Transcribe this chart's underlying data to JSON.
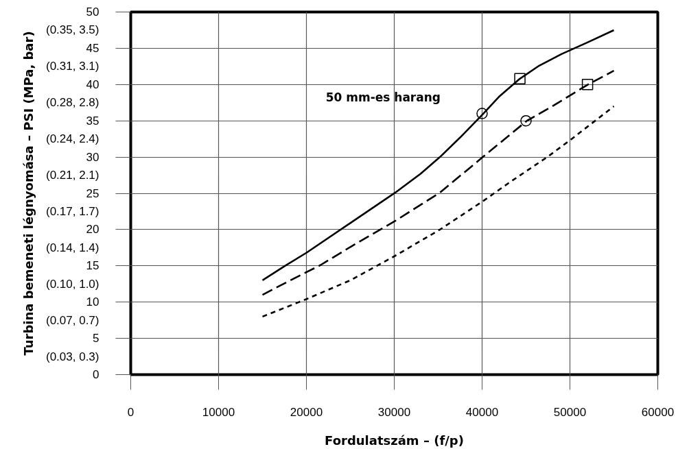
{
  "chart_data": {
    "type": "line",
    "xlabel": "Fordulatszám – (f/p)",
    "ylabel": "Turbina bemeneti légnyomása – PSI (MPa, bar)",
    "annotations": [
      "50 mm-es harang"
    ],
    "xlim": [
      0,
      60000
    ],
    "xticks": [
      0,
      10000,
      20000,
      30000,
      40000,
      50000,
      60000
    ],
    "ylim": [
      0,
      50
    ],
    "yticks": [
      0,
      {
        "value": 2.5,
        "label": "(0.03, 0.3)"
      },
      5,
      {
        "value": 7.5,
        "label": "(0.07, 0.7)"
      },
      10,
      {
        "value": 12.5,
        "label": "(0.10, 1.0)"
      },
      15,
      {
        "value": 17.5,
        "label": "(0.14, 1.4)"
      },
      20,
      {
        "value": 22.5,
        "label": "(0.17, 1.7)"
      },
      25,
      {
        "value": 27.5,
        "label": "(0.21, 2.1)"
      },
      30,
      {
        "value": 32.5,
        "label": "(0.24, 2.4)"
      },
      35,
      {
        "value": 37.5,
        "label": "(0.28, 2.8)"
      },
      40,
      {
        "value": 42.5,
        "label": "(0.31, 3.1)"
      },
      45,
      {
        "value": 47.5,
        "label": "(0.35, 3.5)"
      },
      50
    ],
    "grid": true,
    "series": [
      {
        "color": "#000000",
        "line_style": "solid",
        "x": [
          15000,
          17560,
          20000,
          25000,
          30120,
          33000,
          35200,
          37500,
          40080,
          42000,
          44300,
          46500,
          49040,
          52000,
          55000
        ],
        "values": [
          13.0,
          15.0,
          16.8,
          20.9,
          25.1,
          27.7,
          30.0,
          32.7,
          35.9,
          38.4,
          40.8,
          42.6,
          44.2,
          45.8,
          47.5
        ]
      },
      {
        "color": "#000000",
        "line_style": "dashed",
        "x": [
          15000,
          18000,
          21600,
          25000,
          30120,
          35200,
          40080,
          45100,
          48000,
          52050,
          55000
        ],
        "values": [
          11.0,
          12.9,
          15.1,
          17.6,
          21.2,
          25.1,
          30.0,
          35.0,
          37.0,
          40.0,
          41.9
        ]
      },
      {
        "color": "#000000",
        "line_style": "dotted",
        "x": [
          15000,
          19980,
          25000,
          30120,
          35200,
          40080,
          43000,
          47420,
          50100,
          55000
        ],
        "values": [
          8.0,
          10.4,
          13.0,
          16.4,
          20.0,
          23.9,
          26.4,
          30.0,
          32.4,
          37.0
        ]
      },
      {
        "type": "scatter",
        "color": "#000000",
        "marker": "circle",
        "x": [
          40000,
          45000
        ],
        "values": [
          36.0,
          35.0
        ]
      },
      {
        "type": "scatter",
        "color": "#000000",
        "marker": "square",
        "x": [
          44300,
          52000
        ],
        "values": [
          40.8,
          40.0
        ]
      }
    ]
  }
}
